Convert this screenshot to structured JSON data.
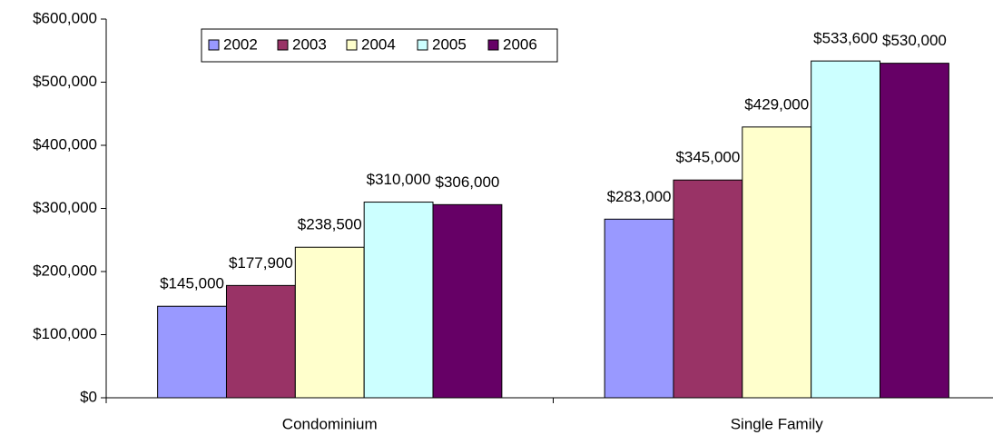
{
  "chart_data": {
    "type": "bar",
    "categories": [
      "Condominium",
      "Single Family"
    ],
    "series": [
      {
        "name": "2002",
        "color": "#9999ff",
        "values": [
          145000,
          283000
        ],
        "value_labels": [
          "$145,000",
          "$283,000"
        ]
      },
      {
        "name": "2003",
        "color": "#993366",
        "values": [
          177900,
          345000
        ],
        "value_labels": [
          "$177,900",
          "$345,000"
        ]
      },
      {
        "name": "2004",
        "color": "#ffffcc",
        "values": [
          238500,
          429000
        ],
        "value_labels": [
          "$238,500",
          "$429,000"
        ]
      },
      {
        "name": "2005",
        "color": "#ccffff",
        "values": [
          310000,
          533600
        ],
        "value_labels": [
          "$310,000",
          "$533,600"
        ]
      },
      {
        "name": "2006",
        "color": "#660066",
        "values": [
          306000,
          530000
        ],
        "value_labels": [
          "$306,000",
          "$530,000"
        ]
      }
    ],
    "ylim": [
      0,
      600000
    ],
    "yticks": [
      {
        "value": 0,
        "label": "$0"
      },
      {
        "value": 100000,
        "label": "$100,000"
      },
      {
        "value": 200000,
        "label": "$200,000"
      },
      {
        "value": 300000,
        "label": "$300,000"
      },
      {
        "value": 400000,
        "label": "$400,000"
      },
      {
        "value": 500000,
        "label": "$500,000"
      },
      {
        "value": 600000,
        "label": "$600,000"
      }
    ],
    "grid": false,
    "legend": "top-left"
  }
}
